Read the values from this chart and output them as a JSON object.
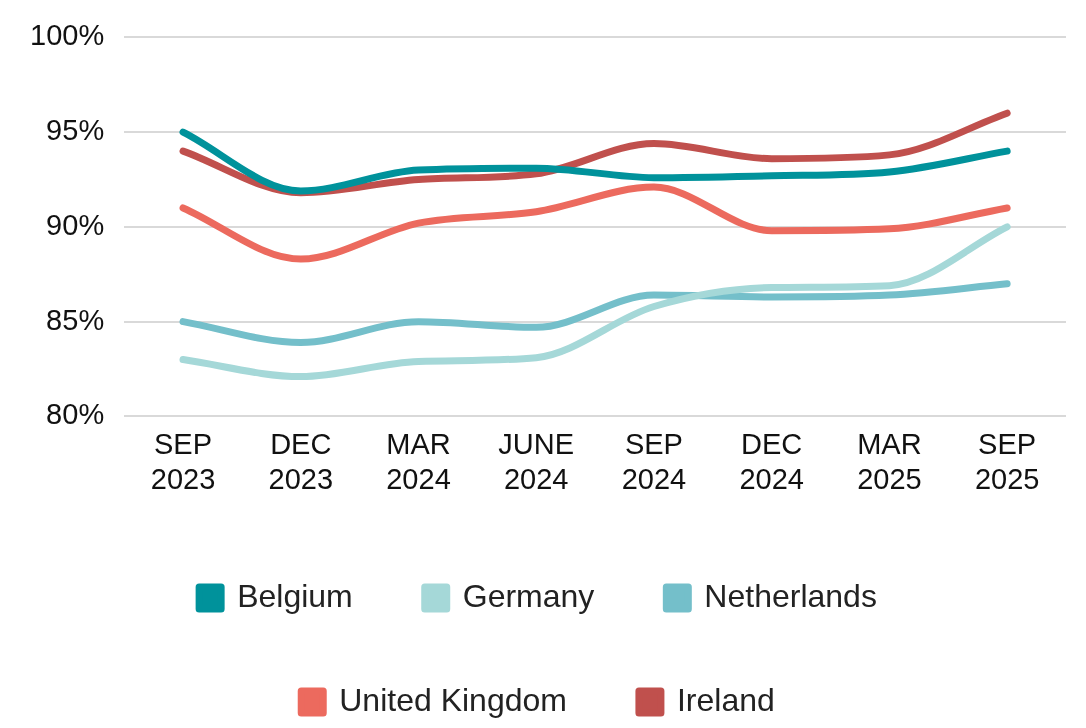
{
  "chart_data": {
    "type": "line",
    "categories": [
      "SEP 2023",
      "DEC 2023",
      "MAR 2024",
      "JUNE 2024",
      "SEP 2024",
      "DEC 2024",
      "MAR 2025",
      "SEP 2025"
    ],
    "series": [
      {
        "name": "Belgium",
        "color": "#00929b",
        "values": [
          95,
          91.9,
          93.0,
          93.1,
          92.6,
          92.7,
          92.9,
          94
        ]
      },
      {
        "name": "Germany",
        "color": "#a5d8d8",
        "values": [
          83,
          82.1,
          82.9,
          83.1,
          85.8,
          86.8,
          86.9,
          90
        ]
      },
      {
        "name": "Netherlands",
        "color": "#74bfca",
        "values": [
          85,
          83.9,
          85.0,
          84.7,
          86.4,
          86.3,
          86.4,
          87
        ]
      },
      {
        "name": "United Kingdom",
        "color": "#ec6a5e",
        "values": [
          91,
          88.3,
          90.2,
          90.8,
          92.1,
          89.8,
          89.9,
          91
        ]
      },
      {
        "name": "Ireland",
        "color": "#c0504d",
        "values": [
          94,
          91.8,
          92.5,
          92.8,
          94.4,
          93.6,
          93.8,
          96
        ]
      }
    ],
    "ylim": [
      80,
      100
    ],
    "yticks": [
      {
        "value": 80,
        "label": "80%"
      },
      {
        "value": 85,
        "label": "85%"
      },
      {
        "value": 90,
        "label": "90%"
      },
      {
        "value": 95,
        "label": "95%"
      },
      {
        "value": 100,
        "label": "100%"
      }
    ],
    "grid": "y",
    "legend": "bottom",
    "marker": "none",
    "line_style": "solid"
  }
}
